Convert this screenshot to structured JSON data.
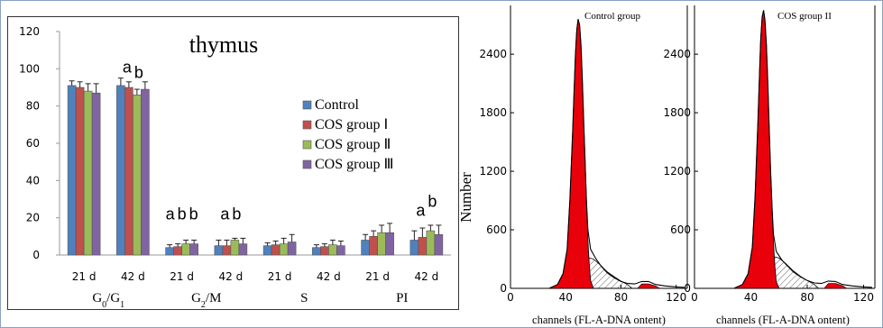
{
  "chart_data": [
    {
      "type": "bar",
      "title": "thymus",
      "ylim": [
        0,
        120
      ],
      "yticks": [
        0,
        20,
        40,
        60,
        80,
        100,
        120
      ],
      "groups": [
        {
          "name_main": "G",
          "sub1": "0",
          "sep": "/G",
          "sub2": "1",
          "times": [
            "21 d",
            "42 d"
          ]
        },
        {
          "name_main": "G",
          "sub1": "2",
          "sep": "/M",
          "sub2": "",
          "times": [
            "21 d",
            "42 d"
          ]
        },
        {
          "name_main": "S",
          "sub1": "",
          "sep": "",
          "sub2": "",
          "times": [
            "21 d",
            "42 d"
          ]
        },
        {
          "name_main": "PI",
          "sub1": "",
          "sep": "",
          "sub2": "",
          "times": [
            "21 d",
            "42 d"
          ]
        }
      ],
      "series": [
        {
          "name": "Control",
          "color": "#4f81bd",
          "values": [
            91,
            91,
            4,
            5,
            5,
            4,
            8,
            8
          ],
          "errors": [
            2.5,
            4,
            1.5,
            3,
            1.5,
            1.5,
            3,
            5
          ]
        },
        {
          "name": "COS group Ⅰ",
          "color": "#c0504d",
          "values": [
            90,
            90,
            4.5,
            5,
            5.5,
            4.5,
            10,
            9.5
          ],
          "errors": [
            3,
            3,
            1.5,
            3,
            2,
            1.5,
            3,
            5
          ]
        },
        {
          "name": "COS group Ⅱ",
          "color": "#9bbb59",
          "values": [
            88,
            86,
            6,
            8,
            6,
            5.5,
            12,
            13
          ],
          "errors": [
            4,
            3,
            2,
            1,
            3,
            2.5,
            4,
            3
          ]
        },
        {
          "name": "COS group Ⅲ",
          "color": "#8064a2",
          "values": [
            87,
            89,
            6,
            6,
            7,
            5,
            12,
            11
          ],
          "errors": [
            5,
            4,
            2,
            3,
            4,
            2.5,
            5,
            5
          ]
        }
      ],
      "letters": [
        {
          "text": "a",
          "cluster": 1,
          "value": 98
        },
        {
          "text": "b",
          "cluster": 1,
          "value": 95
        },
        {
          "text": "a",
          "cluster": 2,
          "value": 19
        },
        {
          "text": "b",
          "cluster": 2,
          "value": 19
        },
        {
          "text": "b",
          "cluster": 2,
          "value": 19
        },
        {
          "text": "a",
          "cluster": 3,
          "value": 19
        },
        {
          "text": "b",
          "cluster": 3,
          "value": 19
        },
        {
          "text": "a",
          "cluster": 7,
          "value": 21
        },
        {
          "text": "b",
          "cluster": 7,
          "value": 26
        }
      ]
    },
    {
      "type": "area",
      "title": "Control group",
      "xlabel": "channels (FL-A-DNA ontent)",
      "ylabel": "Number",
      "xlim": [
        0,
        128
      ],
      "ylim": [
        0,
        2900
      ],
      "xticks": [
        0,
        40,
        80,
        120
      ],
      "yticks": [
        0,
        600,
        1200,
        1800,
        2400
      ],
      "envelope": [
        [
          28,
          0
        ],
        [
          34,
          40
        ],
        [
          38,
          150
        ],
        [
          41,
          400
        ],
        [
          43,
          900
        ],
        [
          45,
          1600
        ],
        [
          46,
          2000
        ],
        [
          47,
          2400
        ],
        [
          48,
          2650
        ],
        [
          49,
          2760
        ],
        [
          50,
          2700
        ],
        [
          51,
          2500
        ],
        [
          52,
          2150
        ],
        [
          53,
          1700
        ],
        [
          54,
          1300
        ],
        [
          55,
          900
        ],
        [
          56,
          600
        ],
        [
          58,
          400
        ],
        [
          62,
          300
        ],
        [
          66,
          220
        ],
        [
          70,
          160
        ],
        [
          75,
          110
        ],
        [
          80,
          70
        ],
        [
          85,
          50
        ],
        [
          90,
          45
        ],
        [
          95,
          70
        ],
        [
          100,
          70
        ],
        [
          105,
          40
        ],
        [
          112,
          25
        ],
        [
          120,
          15
        ],
        [
          126,
          10
        ]
      ],
      "g1": [
        [
          28,
          0
        ],
        [
          34,
          40
        ],
        [
          38,
          150
        ],
        [
          41,
          400
        ],
        [
          43,
          900
        ],
        [
          45,
          1600
        ],
        [
          46,
          2000
        ],
        [
          47,
          2400
        ],
        [
          48,
          2650
        ],
        [
          49,
          2760
        ],
        [
          50,
          2700
        ],
        [
          51,
          2500
        ],
        [
          52,
          2150
        ],
        [
          53,
          1700
        ],
        [
          54,
          1300
        ],
        [
          55,
          900
        ],
        [
          56,
          500
        ],
        [
          57,
          250
        ],
        [
          58,
          80
        ],
        [
          60,
          0
        ]
      ],
      "s_phase": [
        [
          44,
          0
        ],
        [
          46,
          180
        ],
        [
          50,
          260
        ],
        [
          55,
          320
        ],
        [
          60,
          300
        ],
        [
          65,
          240
        ],
        [
          70,
          170
        ],
        [
          75,
          120
        ],
        [
          80,
          75
        ],
        [
          85,
          35
        ],
        [
          88,
          0
        ]
      ],
      "g2": [
        [
          92,
          0
        ],
        [
          95,
          45
        ],
        [
          100,
          45
        ],
        [
          105,
          25
        ],
        [
          108,
          0
        ]
      ]
    },
    {
      "type": "area",
      "title": "COS group II",
      "xlabel": "channels (FL-A-DNA ontent)",
      "xlim": [
        0,
        128
      ],
      "ylim": [
        0,
        2900
      ],
      "xticks": [
        0,
        40,
        80,
        120
      ],
      "yticks": [
        0,
        600,
        1200,
        1800,
        2400
      ],
      "envelope": [
        [
          28,
          0
        ],
        [
          34,
          40
        ],
        [
          38,
          150
        ],
        [
          41,
          420
        ],
        [
          43,
          950
        ],
        [
          45,
          1700
        ],
        [
          46,
          2150
        ],
        [
          47,
          2550
        ],
        [
          48,
          2780
        ],
        [
          49,
          2850
        ],
        [
          50,
          2750
        ],
        [
          51,
          2500
        ],
        [
          52,
          2100
        ],
        [
          53,
          1650
        ],
        [
          54,
          1200
        ],
        [
          55,
          850
        ],
        [
          56,
          560
        ],
        [
          58,
          380
        ],
        [
          62,
          290
        ],
        [
          66,
          230
        ],
        [
          70,
          170
        ],
        [
          75,
          120
        ],
        [
          80,
          80
        ],
        [
          85,
          55
        ],
        [
          90,
          50
        ],
        [
          95,
          75
        ],
        [
          100,
          70
        ],
        [
          105,
          40
        ],
        [
          112,
          25
        ],
        [
          120,
          15
        ],
        [
          126,
          10
        ]
      ],
      "g1": [
        [
          28,
          0
        ],
        [
          34,
          40
        ],
        [
          38,
          150
        ],
        [
          41,
          420
        ],
        [
          43,
          950
        ],
        [
          45,
          1700
        ],
        [
          46,
          2150
        ],
        [
          47,
          2550
        ],
        [
          48,
          2780
        ],
        [
          49,
          2850
        ],
        [
          50,
          2750
        ],
        [
          51,
          2500
        ],
        [
          52,
          2100
        ],
        [
          53,
          1650
        ],
        [
          54,
          1200
        ],
        [
          55,
          850
        ],
        [
          56,
          480
        ],
        [
          57,
          230
        ],
        [
          58,
          70
        ],
        [
          60,
          0
        ]
      ],
      "s_phase": [
        [
          44,
          0
        ],
        [
          46,
          190
        ],
        [
          50,
          270
        ],
        [
          55,
          330
        ],
        [
          60,
          310
        ],
        [
          65,
          250
        ],
        [
          70,
          180
        ],
        [
          75,
          125
        ],
        [
          80,
          80
        ],
        [
          85,
          40
        ],
        [
          88,
          0
        ]
      ],
      "g2": [
        [
          92,
          0
        ],
        [
          95,
          50
        ],
        [
          100,
          50
        ],
        [
          105,
          28
        ],
        [
          108,
          0
        ]
      ]
    }
  ]
}
